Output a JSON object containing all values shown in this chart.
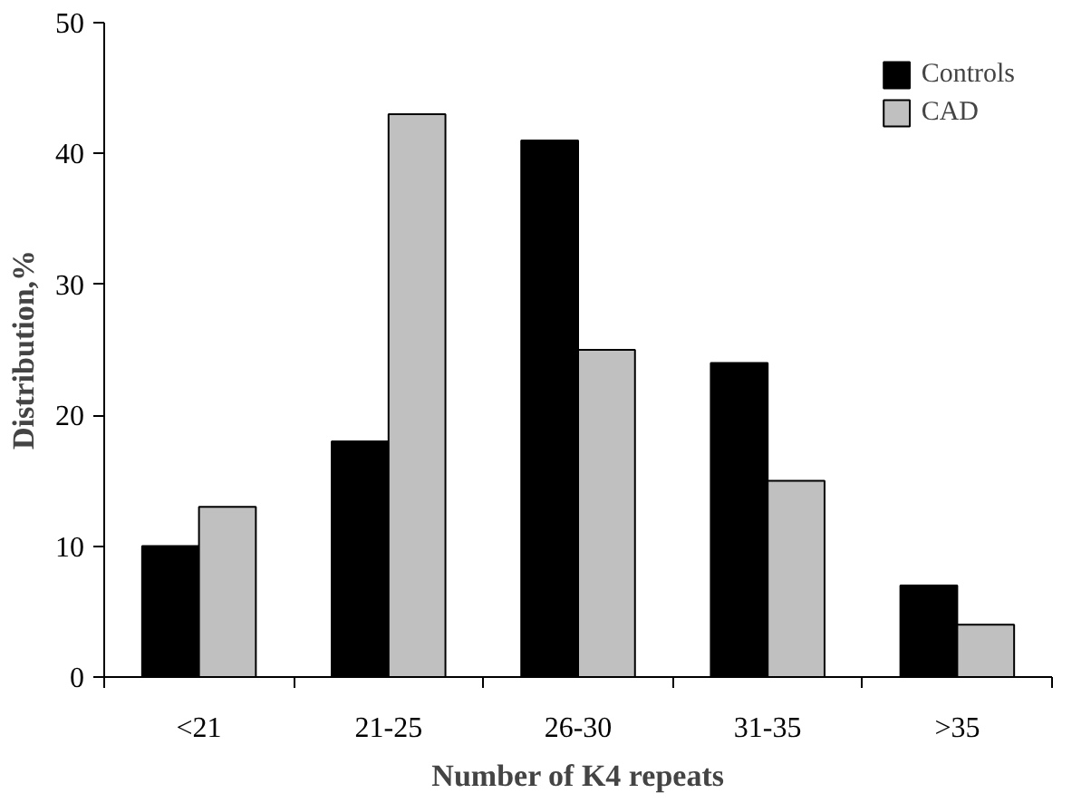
{
  "chart_data": {
    "type": "bar",
    "xlabel": "Number of K4 repeats",
    "ylabel": "Distribution,%",
    "categories": [
      "<21",
      "21-25",
      "26-30",
      "31-35",
      ">35"
    ],
    "series": [
      {
        "name": "Controls",
        "color": "#000000",
        "values": [
          10,
          18,
          41,
          24,
          7
        ]
      },
      {
        "name": "CAD",
        "color": "#c0c0c0",
        "values": [
          13,
          43,
          25,
          15,
          4
        ]
      }
    ],
    "ylim": [
      0,
      50
    ],
    "yticks": [
      0,
      10,
      20,
      30,
      40,
      50
    ],
    "grid": false,
    "legend": "top right"
  }
}
